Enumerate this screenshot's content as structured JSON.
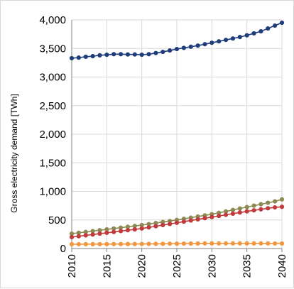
{
  "chart_data": {
    "type": "line",
    "title": "",
    "xlabel": "",
    "ylabel": "Gross electricity demand [TWh]",
    "ylim": [
      0,
      4000
    ],
    "xlim": [
      2010,
      2040
    ],
    "grid": true,
    "legend": "none",
    "y_ticks": [
      {
        "value": 0,
        "label": "0"
      },
      {
        "value": 500,
        "label": "500"
      },
      {
        "value": 1000,
        "label": "1,000"
      },
      {
        "value": 1500,
        "label": "1,500"
      },
      {
        "value": 2000,
        "label": "2,000"
      },
      {
        "value": 2500,
        "label": "2,500"
      },
      {
        "value": 3000,
        "label": "3,000"
      },
      {
        "value": 3500,
        "label": "3,500"
      },
      {
        "value": 4000,
        "label": "4,000"
      }
    ],
    "x_ticks": [
      {
        "value": 2010,
        "label": "2010"
      },
      {
        "value": 2015,
        "label": "2015"
      },
      {
        "value": 2020,
        "label": "2020"
      },
      {
        "value": 2025,
        "label": "2025"
      },
      {
        "value": 2030,
        "label": "2030"
      },
      {
        "value": 2035,
        "label": "2035"
      },
      {
        "value": 2040,
        "label": "2040"
      }
    ],
    "x": [
      2010,
      2011,
      2012,
      2013,
      2014,
      2015,
      2016,
      2017,
      2018,
      2019,
      2020,
      2021,
      2022,
      2023,
      2024,
      2025,
      2026,
      2027,
      2028,
      2029,
      2030,
      2031,
      2032,
      2033,
      2034,
      2035,
      2036,
      2037,
      2038,
      2039,
      2040
    ],
    "series": [
      {
        "color": "#1f3d7a",
        "values": [
          3330,
          3340,
          3355,
          3365,
          3380,
          3390,
          3400,
          3400,
          3395,
          3395,
          3390,
          3400,
          3420,
          3440,
          3465,
          3490,
          3510,
          3530,
          3550,
          3575,
          3600,
          3625,
          3650,
          3675,
          3700,
          3730,
          3765,
          3800,
          3850,
          3900,
          3950
        ]
      },
      {
        "color": "#8c8a52",
        "values": [
          260,
          275,
          290,
          305,
          320,
          335,
          350,
          365,
          380,
          395,
          410,
          428,
          446,
          464,
          482,
          500,
          520,
          540,
          560,
          580,
          600,
          625,
          650,
          675,
          700,
          725,
          750,
          775,
          800,
          825,
          860
        ]
      },
      {
        "color": "#c0393b",
        "values": [
          200,
          215,
          230,
          245,
          260,
          275,
          290,
          305,
          320,
          335,
          350,
          370,
          390,
          410,
          430,
          450,
          470,
          490,
          510,
          530,
          550,
          570,
          590,
          610,
          630,
          650,
          668,
          686,
          704,
          720,
          730
        ]
      },
      {
        "color": "#f2963f",
        "values": [
          75,
          75,
          76,
          76,
          77,
          77,
          78,
          78,
          79,
          79,
          80,
          81,
          82,
          83,
          84,
          85,
          86,
          87,
          88,
          89,
          90,
          90,
          90,
          90,
          90,
          90,
          90,
          89,
          89,
          88,
          88
        ]
      }
    ],
    "colors": {
      "grid": "#d9d9d9",
      "axis": "#808080",
      "frame": "#d9d9d9"
    }
  }
}
